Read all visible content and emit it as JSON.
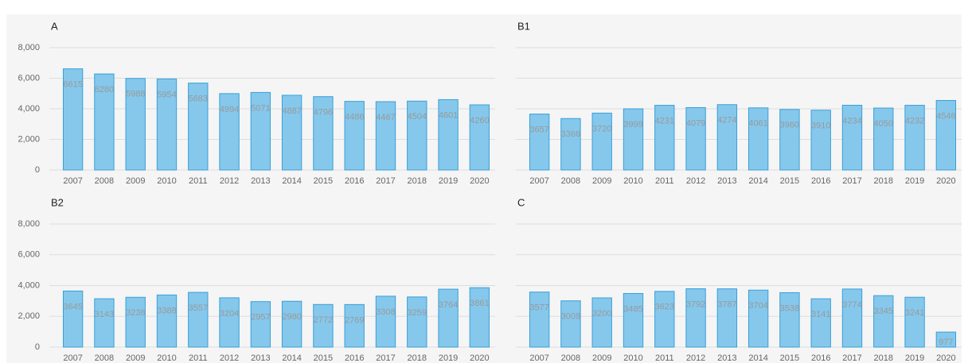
{
  "chart_data": [
    {
      "type": "bar",
      "title": "A",
      "color": "#85c8ec",
      "edge_color": "#3a9fd8",
      "categories": [
        "2007",
        "2008",
        "2009",
        "2010",
        "2011",
        "2012",
        "2013",
        "2014",
        "2015",
        "2016",
        "2017",
        "2018",
        "2019",
        "2020"
      ],
      "values": [
        6615,
        6280,
        5988,
        5954,
        5683,
        4994,
        5071,
        4887,
        4796,
        4486,
        4467,
        4504,
        4601,
        4260
      ],
      "ylim": [
        0,
        8000
      ],
      "yticks": [
        0,
        {
          "value": 2000,
          "label": "2,000"
        },
        {
          "value": 4000,
          "label": "4,000"
        },
        {
          "value": 6000,
          "label": "6,000"
        },
        {
          "value": 8000,
          "label": "8,000"
        }
      ],
      "grid": true
    },
    {
      "type": "bar",
      "title": "B1",
      "color": "#85c8ec",
      "edge_color": "#3a9fd8",
      "categories": [
        "2007",
        "2008",
        "2009",
        "2010",
        "2011",
        "2012",
        "2013",
        "2014",
        "2015",
        "2016",
        "2017",
        "2018",
        "2019",
        "2020"
      ],
      "values": [
        3657,
        3366,
        3720,
        3999,
        4231,
        4079,
        4274,
        4061,
        3960,
        3910,
        4234,
        4050,
        4232,
        4546
      ],
      "ylim": [
        0,
        8000
      ],
      "yticks": [
        0,
        2000,
        4000,
        6000,
        8000
      ],
      "show_ytick_labels": false,
      "grid": true
    },
    {
      "type": "bar",
      "title": "B2",
      "color": "#85c8ec",
      "edge_color": "#3a9fd8",
      "categories": [
        "2007",
        "2008",
        "2009",
        "2010",
        "2011",
        "2012",
        "2013",
        "2014",
        "2015",
        "2016",
        "2017",
        "2018",
        "2019",
        "2020"
      ],
      "values": [
        3645,
        3143,
        3238,
        3388,
        3557,
        3204,
        2957,
        2980,
        2772,
        2769,
        3308,
        3259,
        3764,
        3861
      ],
      "ylim": [
        0,
        8000
      ],
      "yticks": [
        0,
        {
          "value": 2000,
          "label": "2,000"
        },
        {
          "value": 4000,
          "label": "4,000"
        },
        {
          "value": 6000,
          "label": "6,000"
        },
        {
          "value": 8000,
          "label": "8,000"
        }
      ],
      "grid": true
    },
    {
      "type": "bar",
      "title": "C",
      "color": "#85c8ec",
      "edge_color": "#3a9fd8",
      "categories": [
        "2007",
        "2008",
        "2009",
        "2010",
        "2011",
        "2012",
        "2013",
        "2014",
        "2015",
        "2016",
        "2017",
        "2018",
        "2019",
        "2020"
      ],
      "values": [
        3577,
        3008,
        3200,
        3485,
        3623,
        3792,
        3787,
        3704,
        3538,
        3141,
        3774,
        3345,
        3241,
        977
      ],
      "ylim": [
        0,
        8000
      ],
      "yticks": [
        0,
        2000,
        4000,
        6000,
        8000
      ],
      "show_ytick_labels": false,
      "grid": true
    }
  ]
}
